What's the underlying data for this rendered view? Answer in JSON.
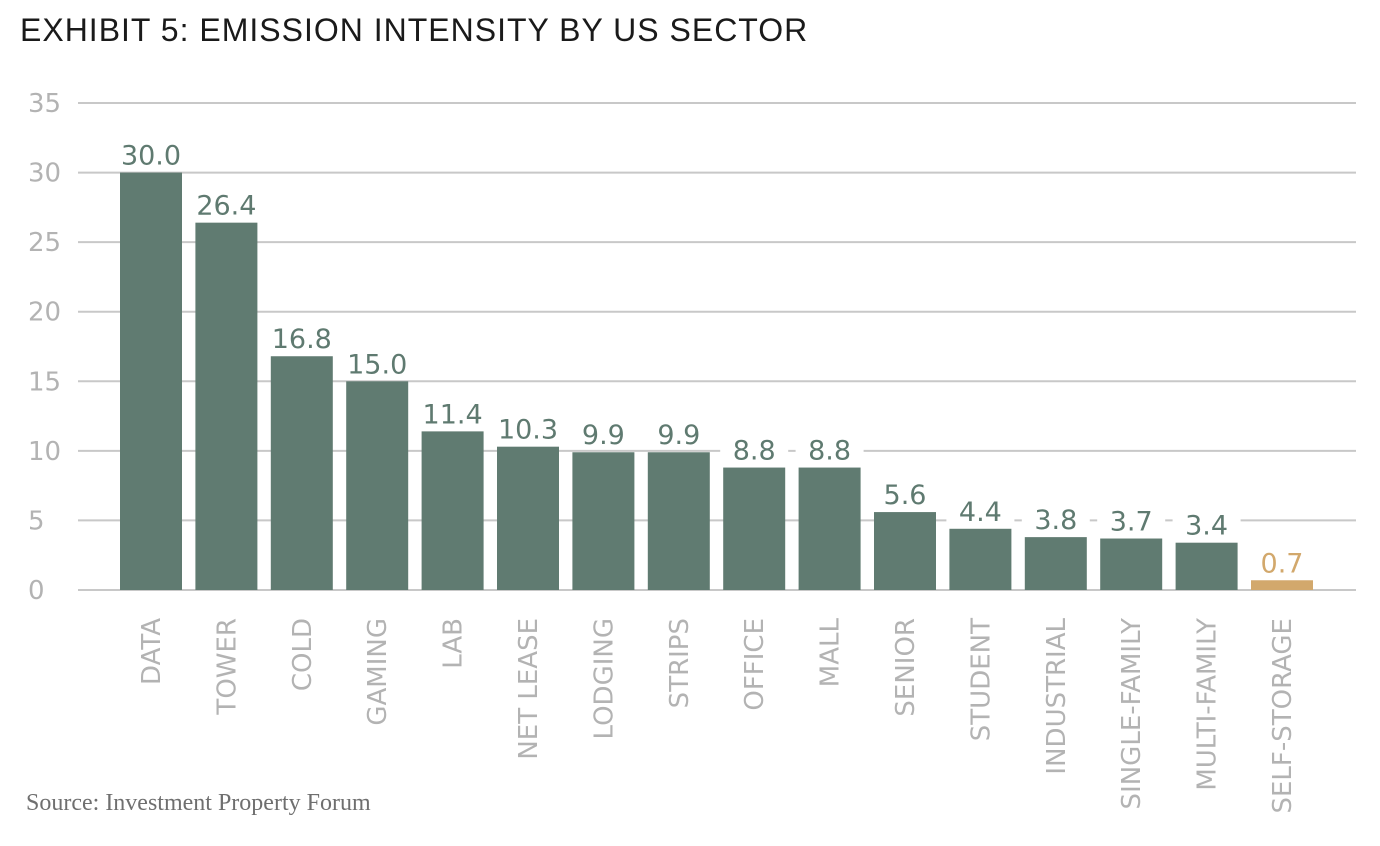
{
  "title": "EXHIBIT 5: EMISSION INTENSITY BY US SECTOR",
  "source": "Source: Investment Property Forum",
  "colors": {
    "bar": "#607b71",
    "highlight": "#d2a86c",
    "grid": "#c8c8c8",
    "value_text": "#5f7a70"
  },
  "chart_data": {
    "type": "bar",
    "categories": [
      "DATA",
      "TOWER",
      "COLD",
      "GAMING",
      "LAB",
      "NET LEASE",
      "LODGING",
      "STRIPS",
      "OFFICE",
      "MALL",
      "SENIOR",
      "STUDENT",
      "INDUSTRIAL",
      "SINGLE-FAMILY",
      "MULTI-FAMILY",
      "SELF-STORAGE"
    ],
    "values": [
      30.0,
      26.4,
      16.8,
      15.0,
      11.4,
      10.3,
      9.9,
      9.9,
      8.8,
      8.8,
      5.6,
      4.4,
      3.8,
      3.7,
      3.4,
      0.7
    ],
    "value_labels": [
      "30.0",
      "26.4",
      "16.8",
      "15.0",
      "11.4",
      "10.3",
      "9.9",
      "9.9",
      "8.8",
      "8.8",
      "5.6",
      "4.4",
      "3.8",
      "3.7",
      "3.4",
      "0.7"
    ],
    "highlight_category": "SELF-STORAGE",
    "yticks": [
      "0",
      "5",
      "10",
      "15",
      "20",
      "25",
      "30",
      "35"
    ],
    "ylim": [
      0,
      35
    ],
    "grid": true,
    "title": "EXHIBIT 5: EMISSION INTENSITY BY US SECTOR",
    "xlabel": "",
    "ylabel": ""
  }
}
